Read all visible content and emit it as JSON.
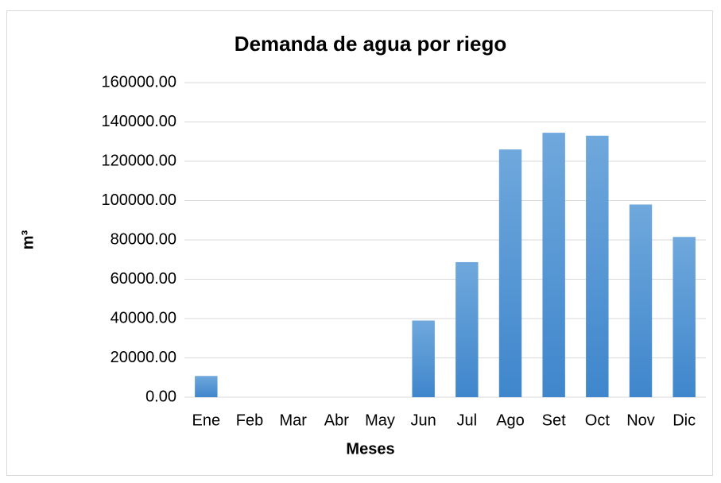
{
  "chart_data": {
    "type": "bar",
    "title": "Demanda de agua por riego",
    "x_label": "Meses",
    "y_label": "m³",
    "categories": [
      "Ene",
      "Feb",
      "Mar",
      "Abr",
      "May",
      "Jun",
      "Jul",
      "Ago",
      "Set",
      "Oct",
      "Nov",
      "Dic"
    ],
    "values": [
      10800,
      0,
      0,
      0,
      0,
      39000,
      68700,
      126000,
      134500,
      133000,
      98000,
      81500
    ],
    "color": "#5b9bd5",
    "ylim": [
      0,
      160000
    ],
    "yticks": [
      {
        "value": 0,
        "label": "0.00"
      },
      {
        "value": 20000,
        "label": "20000.00"
      },
      {
        "value": 40000,
        "label": "40000.00"
      },
      {
        "value": 60000,
        "label": "60000.00"
      },
      {
        "value": 80000,
        "label": "80000.00"
      },
      {
        "value": 100000,
        "label": "100000.00"
      },
      {
        "value": 120000,
        "label": "120000.00"
      },
      {
        "value": 140000,
        "label": "140000.00"
      },
      {
        "value": 160000,
        "label": "160000.00"
      }
    ],
    "grid": true
  }
}
